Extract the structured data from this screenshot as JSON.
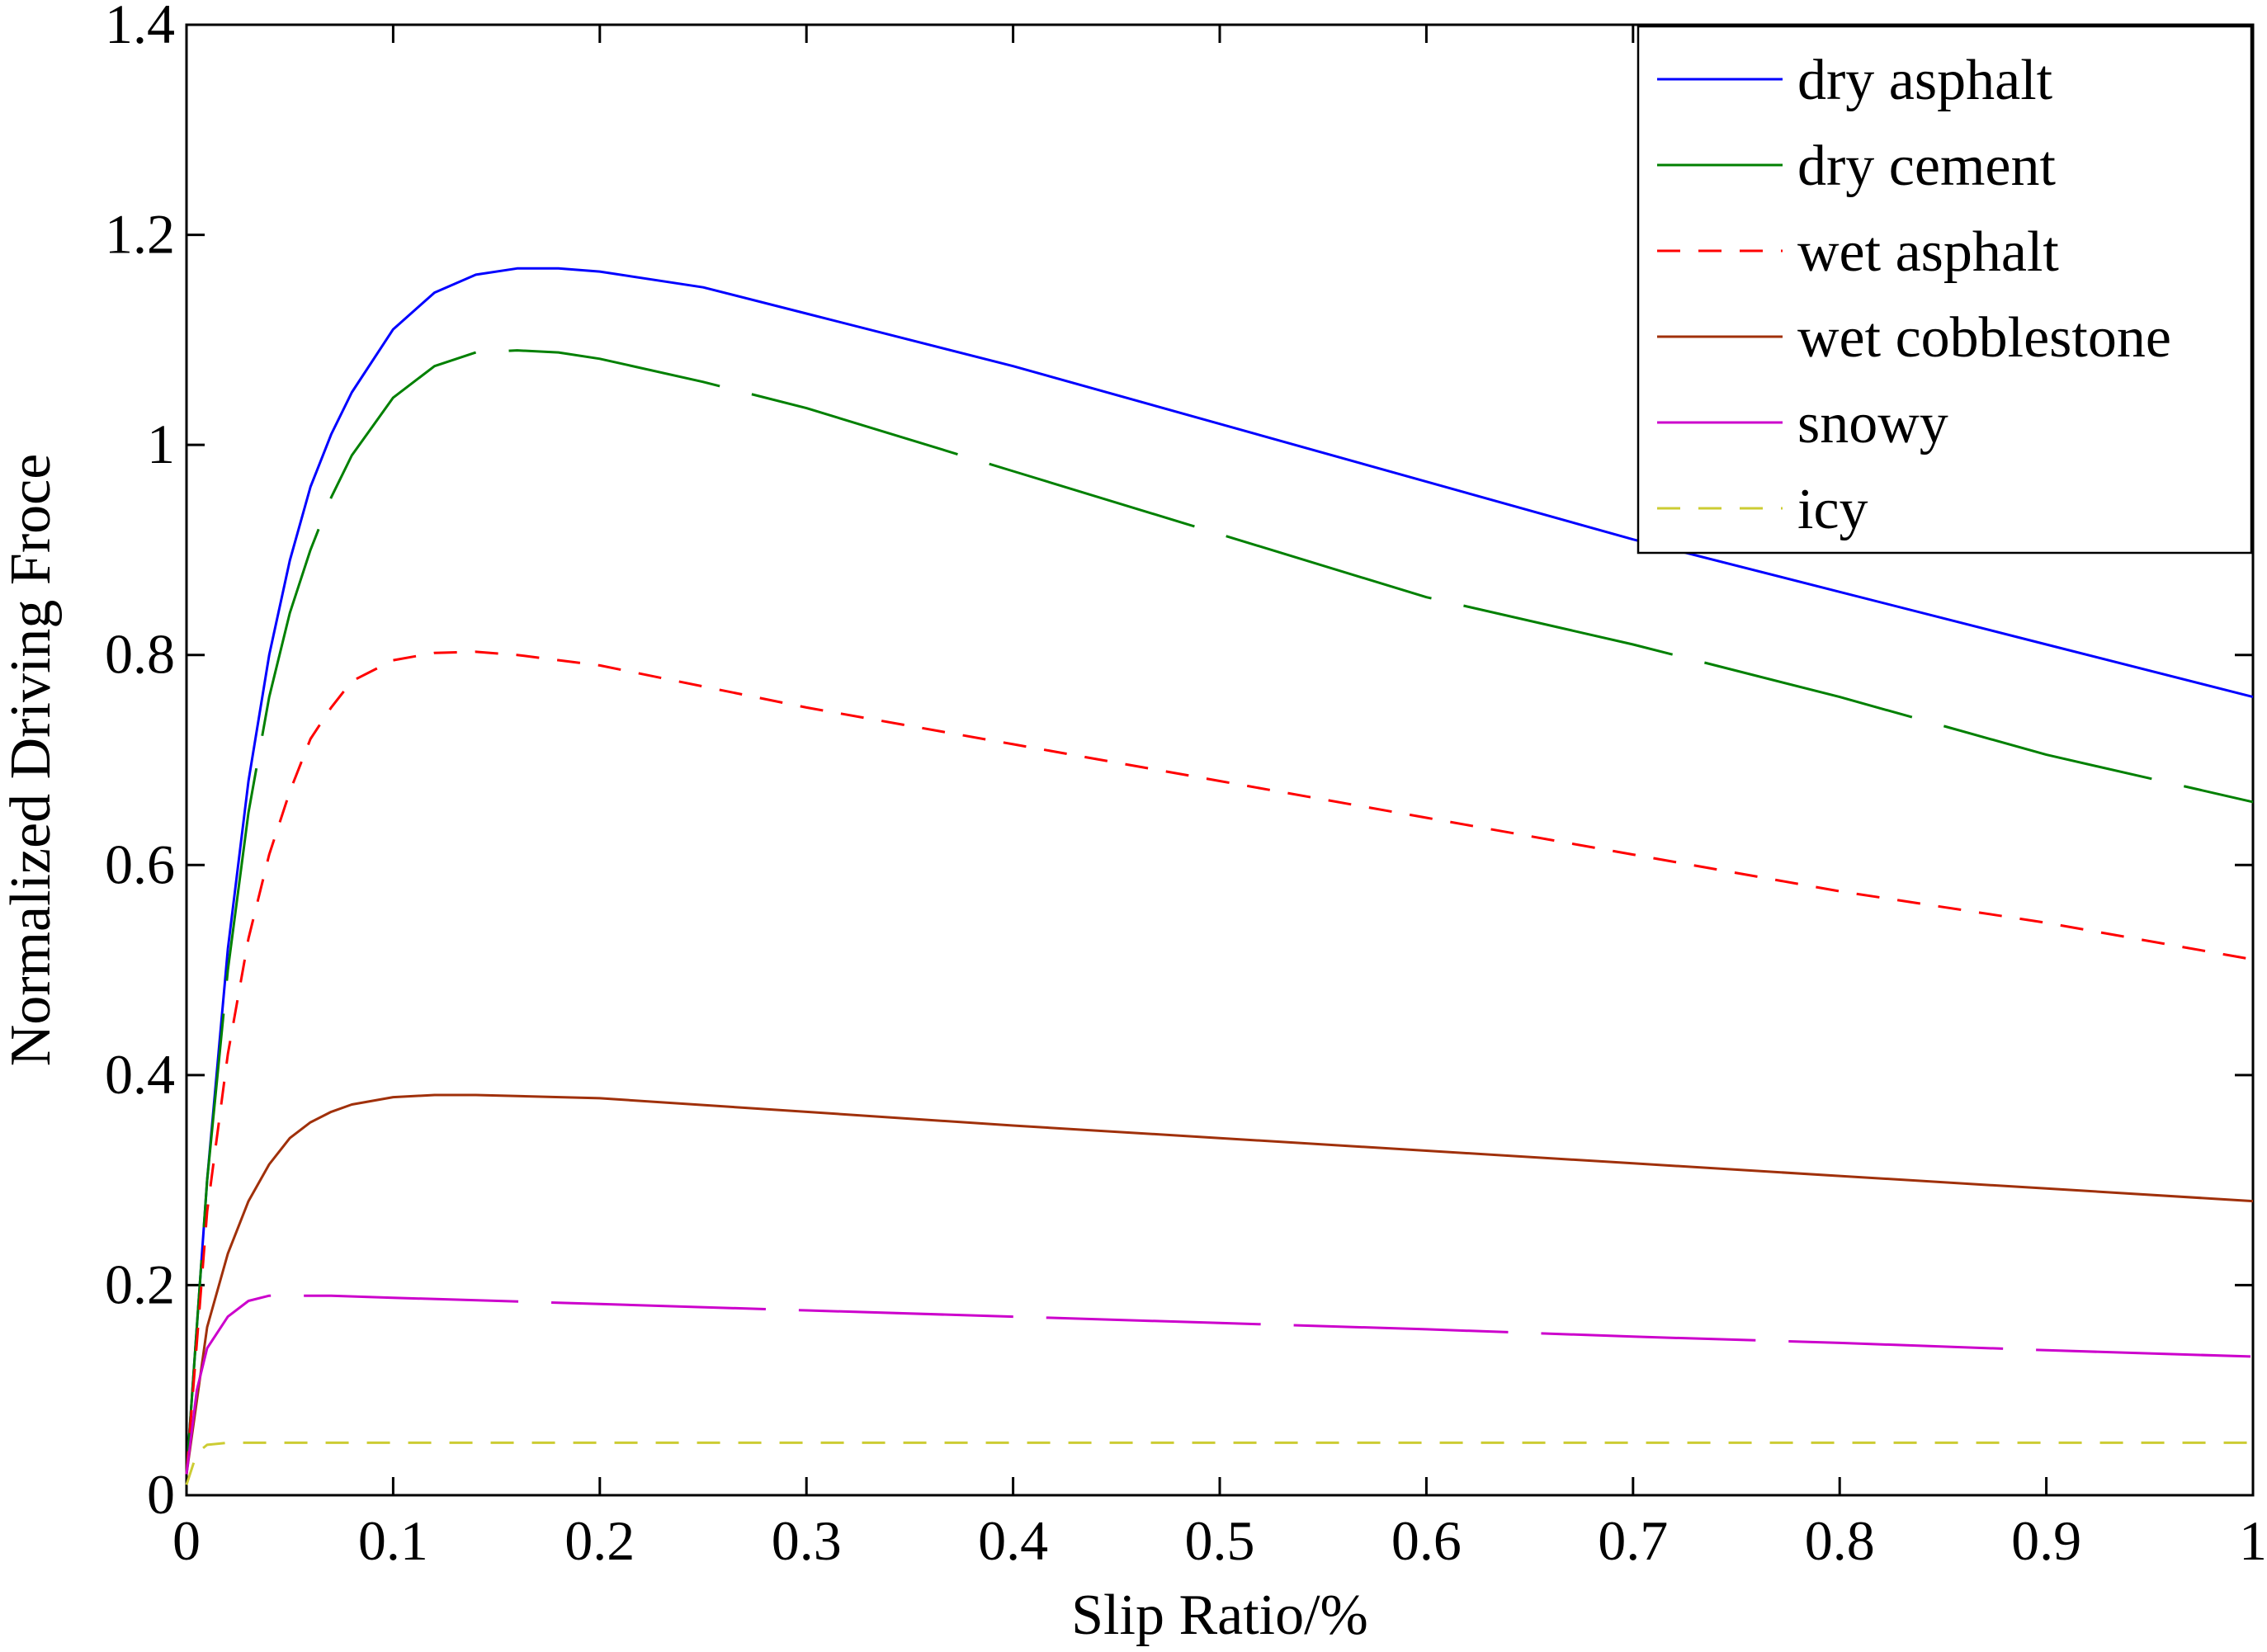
{
  "chart_data": {
    "type": "line",
    "title": "",
    "xlabel": "Slip Ratio/%",
    "ylabel": "Normalized Driving Froce",
    "xlim": [
      0,
      1
    ],
    "ylim": [
      0,
      1.4
    ],
    "xticks": [
      0,
      0.1,
      0.2,
      0.3,
      0.4,
      0.5,
      0.6,
      0.7,
      0.8,
      0.9,
      1
    ],
    "xtick_labels": [
      "0",
      "0.1",
      "0.2",
      "0.3",
      "0.4",
      "0.5",
      "0.6",
      "0.7",
      "0.8",
      "0.9",
      "1"
    ],
    "yticks": [
      0,
      0.2,
      0.4,
      0.6,
      0.8,
      1,
      1.2,
      1.4
    ],
    "ytick_labels": [
      "0",
      "0.2",
      "0.4",
      "0.6",
      "0.8",
      "1",
      "1.2",
      "1.4"
    ],
    "grid": false,
    "legend_position": "top-right",
    "series": [
      {
        "name": "dry asphalt",
        "color": "#0000ff",
        "dash": "solid",
        "x": [
          0,
          0.01,
          0.02,
          0.03,
          0.04,
          0.05,
          0.06,
          0.07,
          0.08,
          0.1,
          0.12,
          0.14,
          0.16,
          0.18,
          0.2,
          0.25,
          0.3,
          0.4,
          0.5,
          0.6,
          0.7,
          0.8,
          0.9,
          1.0
        ],
        "y": [
          0.02,
          0.3,
          0.52,
          0.68,
          0.8,
          0.89,
          0.96,
          1.01,
          1.05,
          1.11,
          1.145,
          1.162,
          1.168,
          1.168,
          1.165,
          1.15,
          1.125,
          1.075,
          1.02,
          0.965,
          0.91,
          0.86,
          0.81,
          0.76
        ]
      },
      {
        "name": "dry cement",
        "color": "#008000",
        "dash": "long",
        "x": [
          0,
          0.01,
          0.02,
          0.03,
          0.04,
          0.05,
          0.06,
          0.07,
          0.08,
          0.1,
          0.12,
          0.14,
          0.16,
          0.18,
          0.2,
          0.25,
          0.3,
          0.4,
          0.5,
          0.6,
          0.7,
          0.8,
          0.9,
          1.0
        ],
        "y": [
          0.02,
          0.3,
          0.5,
          0.65,
          0.76,
          0.84,
          0.9,
          0.95,
          0.99,
          1.045,
          1.075,
          1.088,
          1.09,
          1.088,
          1.082,
          1.06,
          1.035,
          0.975,
          0.915,
          0.855,
          0.81,
          0.76,
          0.705,
          0.66
        ]
      },
      {
        "name": "wet asphalt",
        "color": "#ff0000",
        "dash": "dashed",
        "x": [
          0,
          0.01,
          0.02,
          0.03,
          0.04,
          0.05,
          0.06,
          0.07,
          0.08,
          0.1,
          0.12,
          0.14,
          0.16,
          0.2,
          0.25,
          0.3,
          0.4,
          0.5,
          0.6,
          0.7,
          0.8,
          0.9,
          1.0
        ],
        "y": [
          0.02,
          0.27,
          0.42,
          0.53,
          0.61,
          0.67,
          0.72,
          0.75,
          0.775,
          0.795,
          0.802,
          0.803,
          0.8,
          0.79,
          0.77,
          0.75,
          0.715,
          0.68,
          0.645,
          0.61,
          0.575,
          0.545,
          0.51
        ]
      },
      {
        "name": "wet cobblestone",
        "color": "#a0300a",
        "dash": "solid",
        "x": [
          0,
          0.01,
          0.02,
          0.03,
          0.04,
          0.05,
          0.06,
          0.07,
          0.08,
          0.1,
          0.12,
          0.14,
          0.16,
          0.2,
          0.3,
          0.4,
          0.5,
          0.6,
          0.7,
          0.8,
          0.9,
          1.0
        ],
        "y": [
          0.02,
          0.16,
          0.23,
          0.28,
          0.315,
          0.34,
          0.355,
          0.365,
          0.372,
          0.379,
          0.381,
          0.381,
          0.38,
          0.378,
          0.365,
          0.352,
          0.34,
          0.328,
          0.316,
          0.304,
          0.292,
          0.28
        ]
      },
      {
        "name": "snowy",
        "color": "#cc00cc",
        "dash": "long",
        "x": [
          0,
          0.005,
          0.01,
          0.02,
          0.03,
          0.04,
          0.05,
          0.07,
          0.1,
          0.2,
          0.3,
          0.4,
          0.5,
          0.6,
          0.7,
          0.8,
          0.9,
          1.0
        ],
        "y": [
          0.02,
          0.1,
          0.14,
          0.17,
          0.185,
          0.19,
          0.19,
          0.19,
          0.188,
          0.182,
          0.176,
          0.17,
          0.164,
          0.158,
          0.151,
          0.145,
          0.138,
          0.132
        ]
      },
      {
        "name": "icy",
        "color": "#cccc33",
        "dash": "dashed",
        "x": [
          0,
          0.005,
          0.01,
          0.02,
          0.05,
          0.2,
          0.4,
          0.6,
          0.8,
          1.0
        ],
        "y": [
          0.01,
          0.04,
          0.048,
          0.05,
          0.05,
          0.05,
          0.05,
          0.05,
          0.05,
          0.05
        ]
      }
    ]
  }
}
